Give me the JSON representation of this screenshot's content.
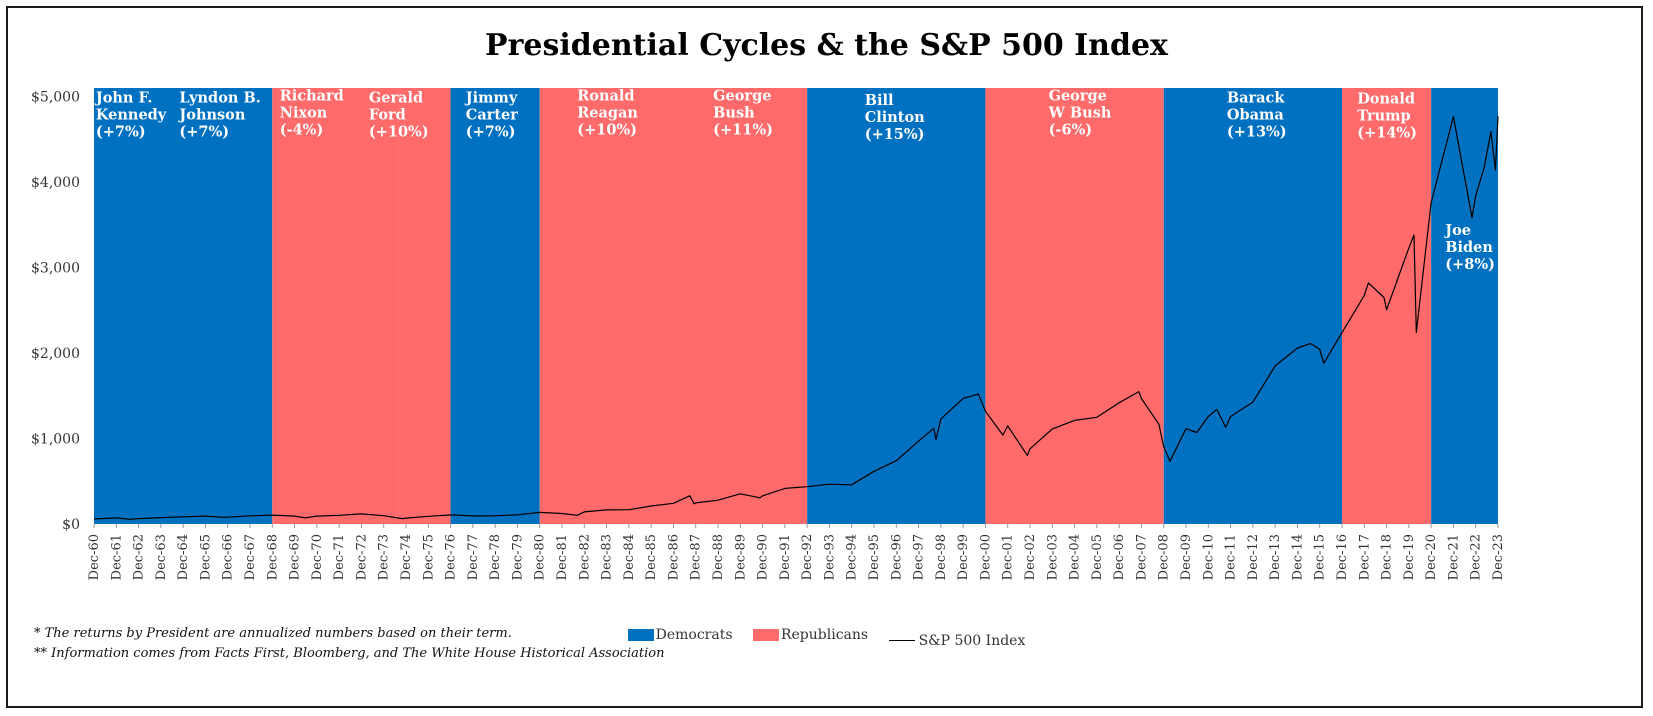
{
  "chart_data": {
    "type": "line",
    "title": "Presidential Cycles & the S&P 500 Index",
    "xlabel": "",
    "ylabel": "",
    "ylim": [
      0,
      5100
    ],
    "xlim": [
      1960.917,
      2023.917
    ],
    "y_ticks": [
      "$0",
      "$1,000",
      "$2,000",
      "$3,000",
      "$4,000",
      "$5,000"
    ],
    "y_tick_values": [
      0,
      1000,
      2000,
      3000,
      4000,
      5000
    ],
    "x_ticks": [
      "Dec-60",
      "Dec-61",
      "Dec-62",
      "Dec-63",
      "Dec-64",
      "Dec-65",
      "Dec-66",
      "Dec-67",
      "Dec-68",
      "Dec-69",
      "Dec-70",
      "Dec-71",
      "Dec-72",
      "Dec-73",
      "Dec-74",
      "Dec-75",
      "Dec-76",
      "Dec-77",
      "Dec-78",
      "Dec-79",
      "Dec-80",
      "Dec-81",
      "Dec-82",
      "Dec-83",
      "Dec-84",
      "Dec-85",
      "Dec-86",
      "Dec-87",
      "Dec-88",
      "Dec-89",
      "Dec-90",
      "Dec-91",
      "Dec-92",
      "Dec-93",
      "Dec-94",
      "Dec-95",
      "Dec-96",
      "Dec-97",
      "Dec-98",
      "Dec-99",
      "Dec-00",
      "Dec-01",
      "Dec-02",
      "Dec-03",
      "Dec-04",
      "Dec-05",
      "Dec-06",
      "Dec-07",
      "Dec-08",
      "Dec-09",
      "Dec-10",
      "Dec-11",
      "Dec-12",
      "Dec-13",
      "Dec-14",
      "Dec-15",
      "Dec-16",
      "Dec-17",
      "Dec-18",
      "Dec-19",
      "Dec-20",
      "Dec-21",
      "Dec-22",
      "Dec-23"
    ],
    "grid": false,
    "legend_position": "bottom",
    "colors": {
      "democrat": "#0070C0",
      "republican": "#FF6B6B",
      "line": "#000000",
      "label": "#ffffff"
    },
    "presidents": [
      {
        "name": [
          "John F.",
          "Kennedy",
          "(+7%)"
        ],
        "party": "democrat",
        "start": 1960.917,
        "end": 1963.9,
        "label_x": 1961.0,
        "label_y": 4990
      },
      {
        "name": [
          "Lyndon B.",
          "Johnson",
          "(+7%)"
        ],
        "party": "democrat",
        "start": 1963.9,
        "end": 1968.917,
        "label_x": 1964.75,
        "label_y": 4990
      },
      {
        "name": [
          "Richard",
          "Nixon",
          "(-4%)"
        ],
        "party": "republican",
        "start": 1968.917,
        "end": 1974.6,
        "label_x": 1969.25,
        "label_y": 5010
      },
      {
        "name": [
          "Gerald",
          "Ford",
          "(+10%)"
        ],
        "party": "republican",
        "start": 1974.6,
        "end": 1976.917,
        "label_x": 1973.25,
        "label_y": 4990
      },
      {
        "name": [
          "Jimmy",
          "Carter",
          "(+7%)"
        ],
        "party": "democrat",
        "start": 1976.917,
        "end": 1980.917,
        "label_x": 1977.6,
        "label_y": 4990
      },
      {
        "name": [
          "Ronald",
          "Reagan",
          "(+10%)"
        ],
        "party": "republican",
        "start": 1980.917,
        "end": 1988.917,
        "label_x": 1982.6,
        "label_y": 5010
      },
      {
        "name": [
          "George",
          "Bush",
          "(+11%)"
        ],
        "party": "republican",
        "start": 1988.917,
        "end": 1992.917,
        "label_x": 1988.7,
        "label_y": 5010
      },
      {
        "name": [
          "Bill",
          "Clinton",
          "(+15%)"
        ],
        "party": "democrat",
        "start": 1992.917,
        "end": 2000.917,
        "label_x": 1995.5,
        "label_y": 4960
      },
      {
        "name": [
          "George",
          "W Bush",
          "(-6%)"
        ],
        "party": "republican",
        "start": 2000.917,
        "end": 2008.917,
        "label_x": 2003.75,
        "label_y": 5010
      },
      {
        "name": [
          "Barack",
          "Obama",
          "(+13%)"
        ],
        "party": "democrat",
        "start": 2008.917,
        "end": 2016.917,
        "label_x": 2011.75,
        "label_y": 4990
      },
      {
        "name": [
          "Donald",
          "Trump",
          "(+14%)"
        ],
        "party": "republican",
        "start": 2016.917,
        "end": 2020.917,
        "label_x": 2017.6,
        "label_y": 4980
      },
      {
        "name": [
          "Joe",
          "Biden",
          "(+8%)"
        ],
        "party": "democrat",
        "start": 2020.917,
        "end": 2023.917,
        "label_x": 2021.55,
        "label_y": 3440
      }
    ],
    "series": [
      {
        "name": "S&P 500 Index",
        "points": [
          [
            1960.917,
            58
          ],
          [
            1961.917,
            71
          ],
          [
            1962.5,
            55
          ],
          [
            1962.917,
            63
          ],
          [
            1963.917,
            75
          ],
          [
            1964.917,
            84
          ],
          [
            1965.917,
            92
          ],
          [
            1966.75,
            77
          ],
          [
            1966.917,
            80
          ],
          [
            1967.917,
            96
          ],
          [
            1968.917,
            104
          ],
          [
            1969.917,
            92
          ],
          [
            1970.4,
            72
          ],
          [
            1970.917,
            92
          ],
          [
            1971.917,
            102
          ],
          [
            1972.917,
            118
          ],
          [
            1973.917,
            97
          ],
          [
            1974.75,
            63
          ],
          [
            1974.917,
            69
          ],
          [
            1975.917,
            90
          ],
          [
            1976.917,
            107
          ],
          [
            1977.917,
            95
          ],
          [
            1978.917,
            96
          ],
          [
            1979.917,
            108
          ],
          [
            1980.917,
            136
          ],
          [
            1981.917,
            123
          ],
          [
            1982.6,
            102
          ],
          [
            1982.917,
            141
          ],
          [
            1983.917,
            165
          ],
          [
            1984.917,
            167
          ],
          [
            1985.917,
            211
          ],
          [
            1986.917,
            242
          ],
          [
            1987.65,
            330
          ],
          [
            1987.85,
            235
          ],
          [
            1987.917,
            247
          ],
          [
            1988.917,
            278
          ],
          [
            1989.917,
            353
          ],
          [
            1990.8,
            306
          ],
          [
            1990.917,
            330
          ],
          [
            1991.917,
            417
          ],
          [
            1992.917,
            436
          ],
          [
            1993.917,
            466
          ],
          [
            1994.917,
            459
          ],
          [
            1995.917,
            616
          ],
          [
            1996.917,
            741
          ],
          [
            1997.917,
            970
          ],
          [
            1998.6,
            1120
          ],
          [
            1998.7,
            987
          ],
          [
            1998.917,
            1229
          ],
          [
            1999.917,
            1469
          ],
          [
            2000.6,
            1520
          ],
          [
            2000.917,
            1320
          ],
          [
            2001.7,
            1040
          ],
          [
            2001.917,
            1148
          ],
          [
            2002.8,
            800
          ],
          [
            2002.917,
            880
          ],
          [
            2003.917,
            1112
          ],
          [
            2004.917,
            1212
          ],
          [
            2005.917,
            1248
          ],
          [
            2006.917,
            1418
          ],
          [
            2007.8,
            1549
          ],
          [
            2007.917,
            1468
          ],
          [
            2008.7,
            1166
          ],
          [
            2008.917,
            903
          ],
          [
            2009.2,
            735
          ],
          [
            2009.917,
            1115
          ],
          [
            2010.4,
            1070
          ],
          [
            2010.917,
            1258
          ],
          [
            2011.3,
            1340
          ],
          [
            2011.7,
            1130
          ],
          [
            2011.917,
            1258
          ],
          [
            2012.917,
            1426
          ],
          [
            2013.917,
            1848
          ],
          [
            2014.917,
            2059
          ],
          [
            2015.5,
            2110
          ],
          [
            2015.917,
            2044
          ],
          [
            2016.1,
            1880
          ],
          [
            2016.917,
            2239
          ],
          [
            2017.917,
            2674
          ],
          [
            2018.1,
            2820
          ],
          [
            2018.8,
            2650
          ],
          [
            2018.917,
            2507
          ],
          [
            2019.917,
            3231
          ],
          [
            2020.15,
            3380
          ],
          [
            2020.25,
            2240
          ],
          [
            2020.917,
            3756
          ],
          [
            2021.917,
            4766
          ],
          [
            2022.75,
            3585
          ],
          [
            2022.917,
            3840
          ],
          [
            2023.3,
            4170
          ],
          [
            2023.6,
            4590
          ],
          [
            2023.8,
            4140
          ],
          [
            2023.917,
            4770
          ]
        ]
      }
    ]
  },
  "legend": {
    "items": [
      {
        "label": "Democrats",
        "color": "#0070C0",
        "kind": "swatch"
      },
      {
        "label": "Republicans",
        "color": "#FF6B6B",
        "kind": "swatch"
      },
      {
        "label": "S&P 500 Index",
        "color": "#000000",
        "kind": "line"
      }
    ]
  },
  "footnotes": {
    "note1": "* The returns by President are annualized numbers based on their term.",
    "note2": "** Information comes from Facts First, Bloomberg, and The White House Historical Association"
  }
}
